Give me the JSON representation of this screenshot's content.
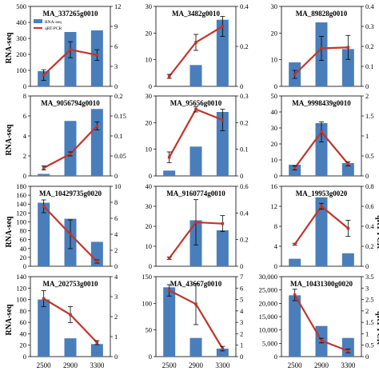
{
  "legend": {
    "rna": "RNA-seq",
    "qrt": "qRT-PCR"
  },
  "axis_labels": {
    "left": "RNA-seq",
    "right": "qRT-PCR"
  },
  "colors": {
    "bar": "#4a7ebb",
    "line": "#c0362c",
    "errorbar": "#000000"
  },
  "chart_data": [
    {
      "type": "bar+line",
      "title": "MA_337265g0010",
      "categories": [
        "2500",
        "2900",
        "3300"
      ],
      "series": [
        {
          "name": "RNA-seq",
          "values": [
            95,
            340,
            350
          ],
          "errors": [
            0,
            0,
            0
          ]
        },
        {
          "name": "qRT-PCR",
          "values": [
            1.7,
            5.5,
            4.7
          ],
          "errors": [
            0.8,
            1.2,
            0.8
          ]
        }
      ],
      "ylim": [
        0,
        500
      ],
      "yticks": [
        0,
        100,
        200,
        300,
        400,
        500
      ],
      "y2lim": [
        0,
        12
      ],
      "y2ticks": [
        0,
        3,
        6,
        9,
        12
      ]
    },
    {
      "type": "bar+line",
      "title": "MA_3482g0010",
      "categories": [
        "2500",
        "2900",
        "3300"
      ],
      "series": [
        {
          "name": "RNA-seq",
          "values": [
            0,
            8,
            25
          ],
          "errors": [
            0,
            0,
            0
          ]
        },
        {
          "name": "qRT-PCR",
          "values": [
            0.05,
            0.22,
            0.3
          ],
          "errors": [
            0.01,
            0.04,
            0.05
          ]
        }
      ],
      "ylim": [
        0,
        30
      ],
      "yticks": [
        0,
        10,
        20,
        30
      ],
      "y2lim": [
        0,
        0.4
      ],
      "y2ticks": [
        0,
        0.2,
        0.4
      ]
    },
    {
      "type": "bar+line",
      "title": "MA_89828g0010",
      "categories": [
        "2500",
        "2900",
        "3300"
      ],
      "series": [
        {
          "name": "RNA-seq",
          "values": [
            9,
            24,
            14
          ],
          "errors": [
            0,
            0,
            0
          ]
        },
        {
          "name": "qRT-PCR",
          "values": [
            0.06,
            0.19,
            0.195
          ],
          "errors": [
            0.02,
            0.06,
            0.06
          ]
        }
      ],
      "ylim": [
        0,
        30
      ],
      "yticks": [
        0,
        10,
        20,
        30
      ],
      "y2lim": [
        0,
        0.4
      ],
      "y2ticks": [
        0,
        0.1,
        0.2,
        0.3,
        0.4
      ]
    },
    {
      "type": "bar+line",
      "title": "MA_9056794g0010",
      "categories": [
        "2500",
        "2900",
        "3300"
      ],
      "series": [
        {
          "name": "RNA-seq",
          "values": [
            0.2,
            5.5,
            6.7
          ],
          "errors": [
            0,
            0,
            0
          ]
        },
        {
          "name": "qRT-PCR",
          "values": [
            0.02,
            0.055,
            0.125
          ],
          "errors": [
            0.005,
            0.005,
            0.01
          ]
        }
      ],
      "ylim": [
        0,
        8
      ],
      "yticks": [
        0,
        2,
        4,
        6,
        8
      ],
      "y2lim": [
        0,
        0.2
      ],
      "y2ticks": [
        0,
        0.05,
        0.1,
        0.15,
        0.2
      ]
    },
    {
      "type": "bar+line",
      "title": "MA_95656g0010",
      "categories": [
        "2500",
        "2900",
        "3300"
      ],
      "series": [
        {
          "name": "RNA-seq",
          "values": [
            2,
            11,
            24
          ],
          "errors": [
            0,
            0,
            0
          ]
        },
        {
          "name": "qRT-PCR",
          "values": [
            0.07,
            0.25,
            0.21
          ],
          "errors": [
            0.02,
            0.01,
            0.04
          ]
        }
      ],
      "ylim": [
        0,
        30
      ],
      "yticks": [
        0,
        10,
        20,
        30
      ],
      "y2lim": [
        0,
        0.3
      ],
      "y2ticks": [
        0,
        0.1,
        0.2,
        0.3
      ]
    },
    {
      "type": "bar+line",
      "title": "MA_9998439g0010",
      "categories": [
        "2500",
        "2900",
        "3300"
      ],
      "series": [
        {
          "name": "RNA-seq",
          "values": [
            7,
            33,
            8
          ],
          "errors": [
            0,
            0,
            0
          ]
        },
        {
          "name": "qRT-PCR",
          "values": [
            0.2,
            1.1,
            0.3
          ],
          "errors": [
            0.05,
            0.25,
            0.05
          ]
        }
      ],
      "ylim": [
        0,
        50
      ],
      "yticks": [
        0,
        10,
        20,
        30,
        40,
        50
      ],
      "y2lim": [
        0,
        2
      ],
      "y2ticks": [
        0,
        0.5,
        1,
        1.5,
        2
      ]
    },
    {
      "type": "bar+line",
      "title": "MA_10429735g0020",
      "categories": [
        "2500",
        "2900",
        "3300"
      ],
      "series": [
        {
          "name": "RNA-seq",
          "values": [
            143,
            107,
            55
          ],
          "errors": [
            0,
            0,
            0
          ]
        },
        {
          "name": "qRT-PCR",
          "values": [
            7.5,
            4,
            0.6
          ],
          "errors": [
            0.8,
            1.8,
            0.2
          ]
        }
      ],
      "ylim": [
        0,
        180
      ],
      "yticks": [
        0,
        20,
        40,
        60,
        80,
        100,
        120,
        140,
        160,
        180
      ],
      "y2lim": [
        0,
        10
      ],
      "y2ticks": [
        0,
        2,
        4,
        6,
        8,
        10
      ]
    },
    {
      "type": "bar+line",
      "title": "MA_9160774g0010",
      "categories": [
        "2500",
        "2900",
        "3300"
      ],
      "series": [
        {
          "name": "RNA-seq",
          "values": [
            0,
            23,
            18
          ],
          "errors": [
            0,
            0,
            0
          ]
        },
        {
          "name": "qRT-PCR",
          "values": [
            0.06,
            0.33,
            0.32
          ],
          "errors": [
            0.01,
            0.17,
            0.06
          ]
        }
      ],
      "ylim": [
        0,
        40
      ],
      "yticks": [
        0,
        10,
        20,
        30,
        40
      ],
      "y2lim": [
        0,
        0.6
      ],
      "y2ticks": [
        0,
        0.2,
        0.4,
        0.6
      ]
    },
    {
      "type": "bar+line",
      "title": "MA_19953g0020",
      "categories": [
        "2500",
        "2900",
        "3300"
      ],
      "series": [
        {
          "name": "RNA-seq",
          "values": [
            1.5,
            13.8,
            2.6
          ],
          "errors": [
            0,
            0,
            0
          ]
        },
        {
          "name": "qRT-PCR",
          "values": [
            0.22,
            0.6,
            0.38
          ],
          "errors": [
            0.01,
            0.03,
            0.08
          ]
        }
      ],
      "ylim": [
        0,
        16
      ],
      "yticks": [
        0,
        4,
        8,
        12,
        16
      ],
      "y2lim": [
        0,
        0.8
      ],
      "y2ticks": [
        0,
        0.2,
        0.4,
        0.6,
        0.8
      ]
    },
    {
      "type": "bar+line",
      "title": "MA_202753g0010",
      "categories": [
        "2500",
        "2900",
        "3300"
      ],
      "series": [
        {
          "name": "RNA-seq",
          "values": [
            100,
            32,
            22
          ],
          "errors": [
            0,
            0,
            0
          ]
        },
        {
          "name": "qRT-PCR",
          "values": [
            2.9,
            2.1,
            0.7
          ],
          "errors": [
            0.4,
            0.4,
            0.1
          ]
        }
      ],
      "ylim": [
        0,
        140
      ],
      "yticks": [
        0,
        20,
        40,
        60,
        80,
        100,
        120,
        140
      ],
      "y2lim": [
        0,
        4
      ],
      "y2ticks": [
        0,
        1,
        2,
        3,
        4
      ]
    },
    {
      "type": "bar+line",
      "title": "MA_43667g0010",
      "categories": [
        "2500",
        "2900",
        "3300"
      ],
      "series": [
        {
          "name": "RNA-seq",
          "values": [
            130,
            35,
            15
          ],
          "errors": [
            0,
            0,
            0
          ]
        },
        {
          "name": "qRT-PCR",
          "values": [
            5.8,
            4.6,
            0.7
          ],
          "errors": [
            0.5,
            1.8,
            0.2
          ]
        }
      ],
      "ylim": [
        0,
        150
      ],
      "yticks": [
        0,
        50,
        100,
        150
      ],
      "y2lim": [
        0,
        7
      ],
      "y2ticks": [
        0,
        1,
        2,
        3,
        4,
        5,
        6,
        7
      ]
    },
    {
      "type": "bar+line",
      "title": "MA_10431300g0020",
      "categories": [
        "2500",
        "2900",
        "3300"
      ],
      "series": [
        {
          "name": "RNA-seq",
          "values": [
            23000,
            11500,
            7000
          ],
          "errors": [
            0,
            0,
            0
          ]
        },
        {
          "name": "qRT-PCR",
          "values": [
            2.7,
            0.7,
            0.25
          ],
          "errors": [
            0.25,
            0.1,
            0.08
          ]
        }
      ],
      "ylim": [
        0,
        30000
      ],
      "yticks": [
        0,
        5000,
        10000,
        15000,
        20000,
        25000,
        30000
      ],
      "y2lim": [
        0,
        3.5
      ],
      "y2ticks": [
        0,
        0.5,
        1,
        1.5,
        2,
        2.5,
        3,
        3.5
      ]
    }
  ]
}
